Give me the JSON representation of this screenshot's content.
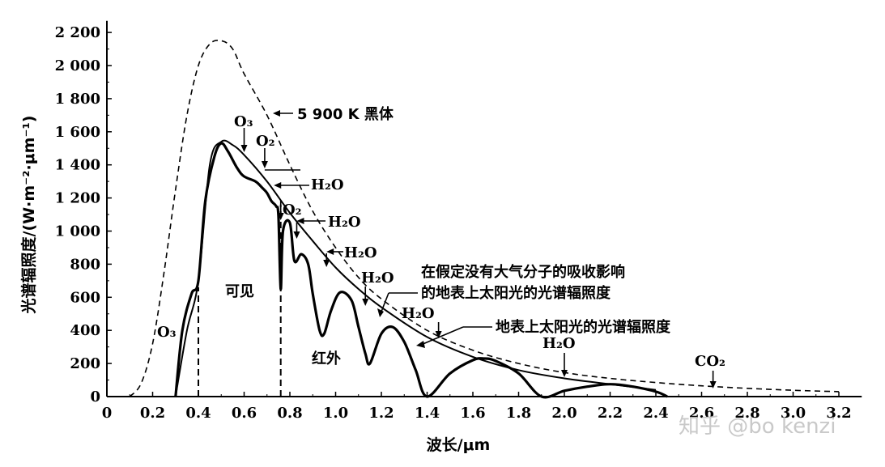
{
  "chart_data": {
    "type": "line",
    "xlabel": "波长/μm",
    "ylabel": "光谱辐照度/(W·m⁻²·μm⁻¹)",
    "xlim": [
      0,
      3.3
    ],
    "ylim": [
      0,
      2200
    ],
    "x_ticks": [
      "0",
      "0.2",
      "0.4",
      "0.6",
      "0.8",
      "1.0",
      "1.2",
      "1.4",
      "1.6",
      "1.8",
      "2.0",
      "2.2",
      "2.4",
      "2.6",
      "2.8",
      "3.0",
      "3.2"
    ],
    "y_ticks": [
      "0",
      "200",
      "400",
      "600",
      "800",
      "1 000",
      "1 200",
      "1 400",
      "1 600",
      "1 800",
      "2 000",
      "2 200"
    ],
    "series": [
      {
        "name": "5 900 K 黑体",
        "style": "dashed",
        "x": [
          0.1,
          0.15,
          0.2,
          0.25,
          0.3,
          0.35,
          0.4,
          0.45,
          0.5,
          0.55,
          0.6,
          0.7,
          0.8,
          0.9,
          1.0,
          1.1,
          1.2,
          1.4,
          1.6,
          1.8,
          2.0,
          2.2,
          2.4,
          2.6,
          2.8,
          3.0,
          3.2
        ],
        "y": [
          0,
          80,
          320,
          750,
          1250,
          1700,
          2000,
          2130,
          2150,
          2100,
          1950,
          1700,
          1400,
          1120,
          900,
          720,
          590,
          400,
          280,
          200,
          145,
          110,
          85,
          65,
          50,
          38,
          30
        ]
      },
      {
        "name": "在假定没有大气分子的吸收影响的地表上太阳光的光谱辐照度",
        "style": "solid",
        "x": [
          0.3,
          0.35,
          0.4,
          0.45,
          0.5,
          0.55,
          0.6,
          0.7,
          0.8,
          0.9,
          1.0,
          1.1,
          1.2,
          1.4,
          1.6,
          1.8,
          2.0,
          2.2,
          2.4
        ],
        "y": [
          0,
          400,
          700,
          1400,
          1540,
          1520,
          1460,
          1300,
          1110,
          940,
          780,
          650,
          540,
          360,
          240,
          160,
          110,
          75,
          40
        ]
      },
      {
        "name": "地表上太阳光的光谱辐照度",
        "style": "solid",
        "x": [
          0.3,
          0.33,
          0.37,
          0.4,
          0.43,
          0.47,
          0.5,
          0.53,
          0.57,
          0.6,
          0.65,
          0.68,
          0.7,
          0.72,
          0.74,
          0.75,
          0.76,
          0.77,
          0.8,
          0.82,
          0.85,
          0.88,
          0.9,
          0.93,
          0.95,
          0.98,
          1.02,
          1.07,
          1.1,
          1.13,
          1.15,
          1.2,
          1.25,
          1.3,
          1.35,
          1.4,
          1.5,
          1.6,
          1.65,
          1.7,
          1.8,
          1.9,
          2.0,
          2.1,
          2.2,
          2.3,
          2.4,
          2.45
        ],
        "y": [
          0,
          400,
          620,
          700,
          1180,
          1450,
          1530,
          1480,
          1380,
          1330,
          1300,
          1260,
          1230,
          1180,
          1150,
          1090,
          650,
          1000,
          1050,
          820,
          860,
          800,
          620,
          400,
          380,
          520,
          630,
          580,
          420,
          260,
          200,
          380,
          420,
          330,
          160,
          0,
          140,
          220,
          230,
          215,
          140,
          0,
          35,
          60,
          75,
          60,
          30,
          0
        ]
      }
    ],
    "region_labels": [
      "可见",
      "红外"
    ],
    "absorption_labels": [
      "O₃",
      "O₃",
      "O₂",
      "H₂O",
      "O₂",
      "H₂O",
      "H₂O",
      "H₂O",
      "H₂O",
      "H₂O",
      "CO₂"
    ],
    "annotations": {
      "blackbody": "5 900 K 黑体",
      "no_absorption_line1": "在假定没有大气分子的吸收影响",
      "no_absorption_line2": "的地表上太阳光的光谱辐照度",
      "surface": "地表上太阳光的光谱辐照度"
    },
    "grid": false,
    "legend": "none"
  },
  "watermark": "知乎 @bo kenzi"
}
